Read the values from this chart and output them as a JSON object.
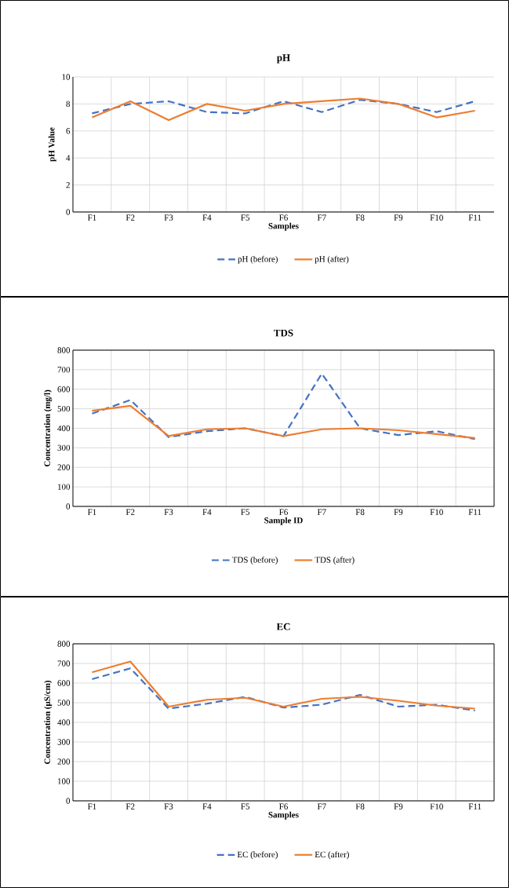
{
  "chart_data": [
    {
      "type": "line",
      "title": "pH",
      "xlabel": "Samples",
      "ylabel": "pH Value",
      "categories": [
        "F1",
        "F2",
        "F3",
        "F4",
        "F5",
        "F6",
        "F7",
        "F8",
        "F9",
        "F10",
        "F11"
      ],
      "ylim": [
        0,
        10
      ],
      "yticks": [
        0,
        2,
        4,
        6,
        8,
        10
      ],
      "grid": true,
      "legend": "bottom",
      "series": [
        {
          "name": "pH (before)",
          "color": "#4472c4",
          "line_style": "dashed",
          "values": [
            7.3,
            8.0,
            8.2,
            7.4,
            7.3,
            8.2,
            7.4,
            8.3,
            8.0,
            7.4,
            8.2
          ]
        },
        {
          "name": "pH (after)",
          "color": "#ed7d31",
          "line_style": "solid",
          "values": [
            7.0,
            8.2,
            6.8,
            8.0,
            7.5,
            8.0,
            8.2,
            8.4,
            8.0,
            7.0,
            7.5
          ]
        }
      ]
    },
    {
      "type": "line",
      "title": "TDS",
      "xlabel": "Sample ID",
      "ylabel": "Concentration (mg/l)",
      "categories": [
        "F1",
        "F2",
        "F3",
        "F4",
        "F5",
        "F6",
        "F7",
        "F8",
        "F9",
        "F10",
        "F11"
      ],
      "ylim": [
        0,
        800
      ],
      "yticks": [
        0,
        100,
        200,
        300,
        400,
        500,
        600,
        700,
        800
      ],
      "grid": true,
      "legend": "bottom",
      "series": [
        {
          "name": "TDS (before)",
          "color": "#4472c4",
          "line_style": "dashed",
          "values": [
            475,
            545,
            355,
            385,
            400,
            360,
            680,
            400,
            365,
            385,
            345
          ]
        },
        {
          "name": "TDS (after)",
          "color": "#ed7d31",
          "line_style": "solid",
          "values": [
            490,
            515,
            360,
            395,
            400,
            360,
            395,
            400,
            390,
            370,
            350
          ]
        }
      ]
    },
    {
      "type": "line",
      "title": "EC",
      "xlabel": "Samples",
      "ylabel": "Concentration (µS/cm)",
      "categories": [
        "F1",
        "F2",
        "F3",
        "F4",
        "F5",
        "F6",
        "F7",
        "F8",
        "F9",
        "F10",
        "F11"
      ],
      "ylim": [
        0,
        800
      ],
      "yticks": [
        0,
        100,
        200,
        300,
        400,
        500,
        600,
        700,
        800
      ],
      "grid": true,
      "legend": "bottom",
      "series": [
        {
          "name": "EC (before)",
          "color": "#4472c4",
          "line_style": "dashed",
          "values": [
            620,
            675,
            470,
            495,
            530,
            475,
            490,
            540,
            480,
            490,
            460
          ]
        },
        {
          "name": "EC (after)",
          "color": "#ed7d31",
          "line_style": "solid",
          "values": [
            655,
            710,
            480,
            515,
            525,
            480,
            520,
            530,
            510,
            485,
            470
          ]
        }
      ]
    }
  ]
}
